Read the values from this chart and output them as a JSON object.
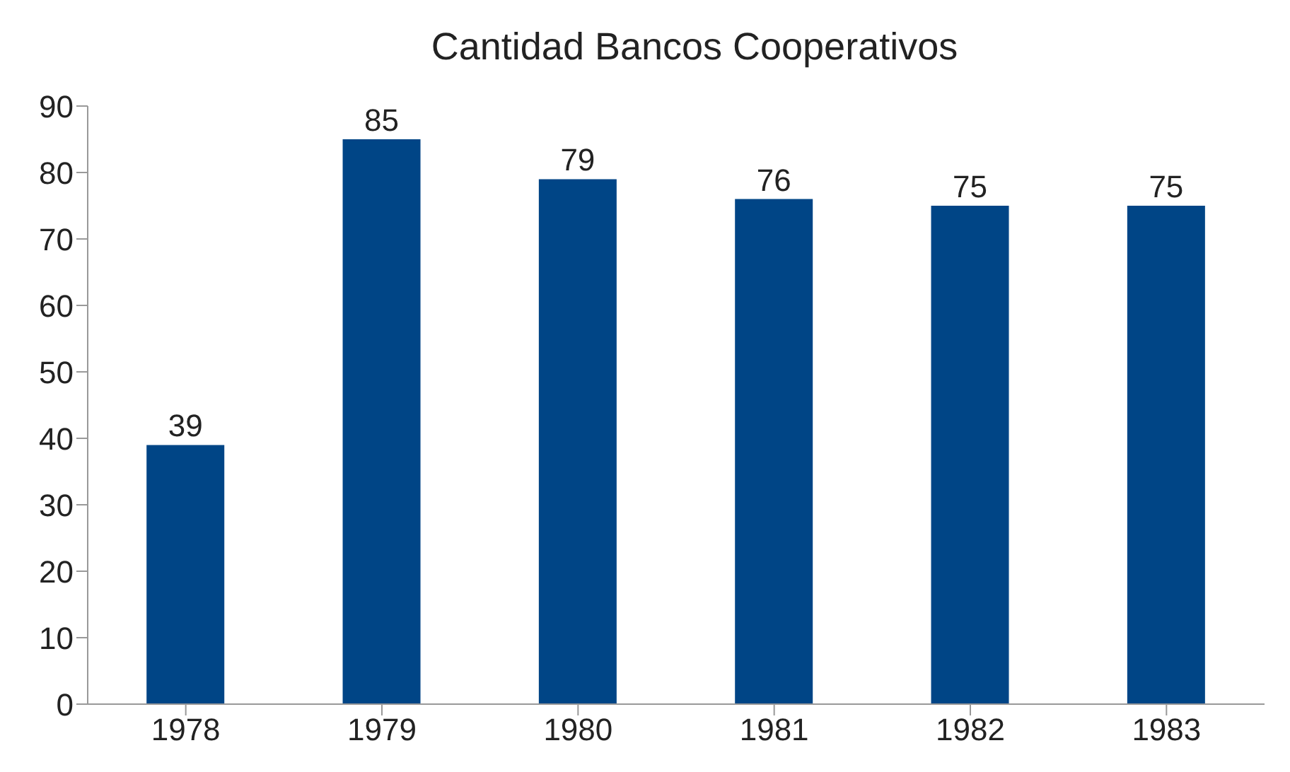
{
  "chart_data": {
    "type": "bar",
    "title": "Cantidad Bancos Cooperativos",
    "categories": [
      "1978",
      "1979",
      "1980",
      "1981",
      "1982",
      "1983"
    ],
    "values": [
      39,
      85,
      79,
      76,
      75,
      75
    ],
    "color": "#004586",
    "ylim": [
      0,
      90
    ],
    "yticks": [
      0,
      10,
      20,
      30,
      40,
      50,
      60,
      70,
      80,
      90
    ],
    "grid": false,
    "data_labels": true,
    "legend": false
  }
}
